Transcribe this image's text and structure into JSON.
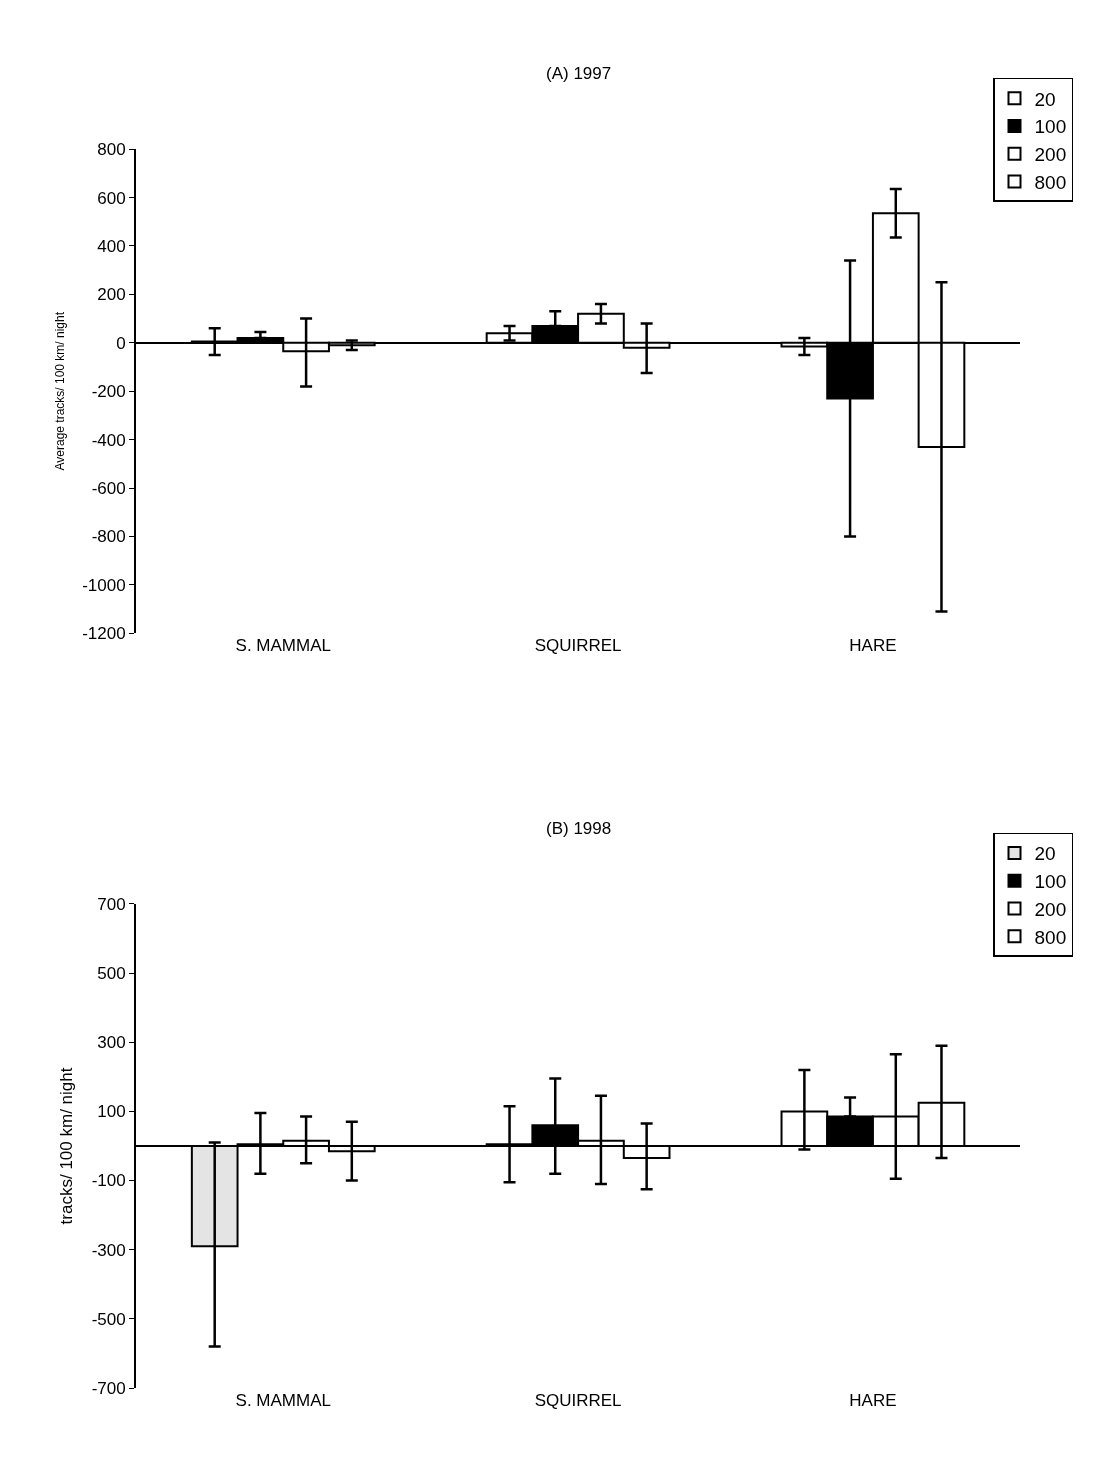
{
  "chart_data": [
    {
      "type": "bar",
      "title": "(A) 1997",
      "ylabel": "Average tracks/ 100 km/ night",
      "categories": [
        "S. MAMMAL",
        "SQUIRREL",
        "HARE"
      ],
      "series": [
        {
          "name": "20",
          "color": "#ffffff",
          "values": [
            5,
            40,
            -15
          ],
          "errors": [
            [
              -50,
              60
            ],
            [
              10,
              70
            ],
            [
              -50,
              20
            ]
          ]
        },
        {
          "name": "100",
          "color": "#000000",
          "values": [
            20,
            70,
            -230
          ],
          "errors": [
            [
              20,
              45
            ],
            [
              70,
              130
            ],
            [
              -800,
              340
            ]
          ]
        },
        {
          "name": "200",
          "color": "#ffffff",
          "values": [
            -35,
            120,
            535
          ],
          "errors": [
            [
              -180,
              100
            ],
            [
              80,
              160
            ],
            [
              435,
              635
            ]
          ]
        },
        {
          "name": "800",
          "color": "#ffffff",
          "values": [
            -10,
            -20,
            -430
          ],
          "errors": [
            [
              -30,
              10
            ],
            [
              -125,
              80
            ],
            [
              -1110,
              250
            ]
          ]
        }
      ],
      "ylim": [
        -1200,
        800
      ],
      "yticks": [
        -1200,
        -1000,
        -800,
        -600,
        -400,
        -200,
        0,
        200,
        400,
        600,
        800
      ],
      "legend": "top right"
    },
    {
      "type": "bar",
      "title": "(B) 1998",
      "ylabel": "tracks/ 100 km/ night",
      "categories": [
        "S. MAMMAL",
        "SQUIRREL",
        "HARE"
      ],
      "series": [
        {
          "name": "20",
          "color": "#ffffff",
          "colors": [
            "#e4e4e4",
            "#ffffff",
            "#ffffff"
          ],
          "values": [
            -290,
            5,
            100
          ],
          "errors": [
            [
              -580,
              10
            ],
            [
              -105,
              115
            ],
            [
              -10,
              220
            ]
          ]
        },
        {
          "name": "100",
          "color": "#000000",
          "values": [
            5,
            60,
            85
          ],
          "errors": [
            [
              -80,
              95
            ],
            [
              -80,
              195
            ],
            [
              85,
              140
            ]
          ]
        },
        {
          "name": "200",
          "color": "#ffffff",
          "values": [
            15,
            15,
            85
          ],
          "errors": [
            [
              -50,
              85
            ],
            [
              -110,
              145
            ],
            [
              -95,
              265
            ]
          ]
        },
        {
          "name": "800",
          "color": "#ffffff",
          "values": [
            -15,
            -35,
            125
          ],
          "errors": [
            [
              -100,
              70
            ],
            [
              -125,
              65
            ],
            [
              -35,
              290
            ]
          ]
        }
      ],
      "ylim": [
        -700,
        700
      ],
      "yticks": [
        -700,
        -500,
        -300,
        -100,
        100,
        300,
        500,
        700
      ],
      "legend": "top right"
    }
  ]
}
